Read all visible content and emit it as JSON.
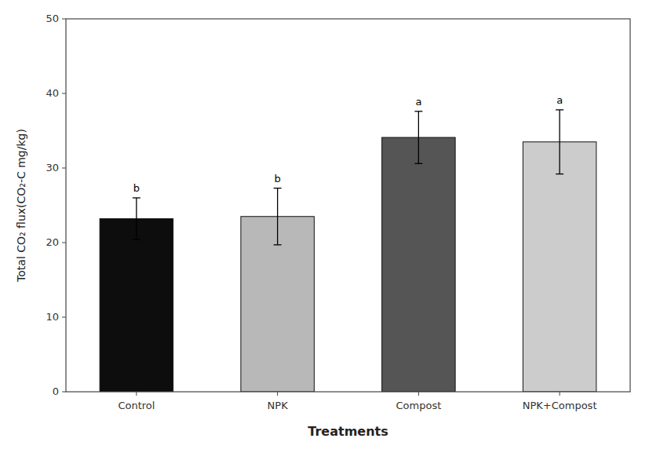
{
  "chart_data": {
    "type": "bar",
    "categories": [
      "Control",
      "NPK",
      "Compost",
      "NPK+Compost"
    ],
    "values": [
      23.2,
      23.5,
      34.1,
      33.5
    ],
    "errors": [
      2.8,
      3.8,
      3.5,
      4.3
    ],
    "colors": [
      "#0d0d0d",
      "#b8b8b8",
      "#555555",
      "#cccccc"
    ],
    "annotations": [
      "b",
      "b",
      "a",
      "a"
    ],
    "y_label": "Total CO₂ flux(CO₂-C mg/kg)",
    "x_label": "Treatments",
    "ylim": [
      0,
      50
    ],
    "yticks": [
      0,
      10,
      20,
      30,
      40,
      50
    ],
    "grid": false
  }
}
